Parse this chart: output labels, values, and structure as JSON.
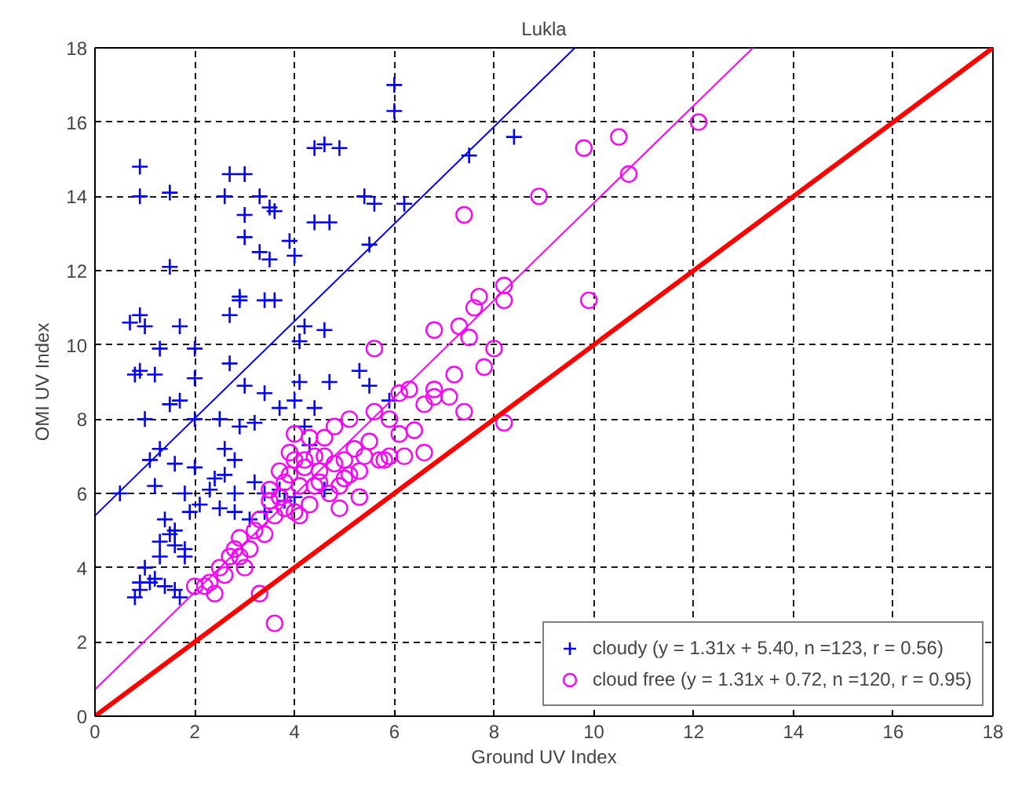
{
  "chart_data": {
    "type": "scatter",
    "title": "Lukla",
    "xlabel": "Ground UV Index",
    "ylabel": "OMI UV Index",
    "xlim": [
      0,
      18
    ],
    "ylim": [
      0,
      18
    ],
    "xticks": [
      0,
      2,
      4,
      6,
      8,
      10,
      12,
      14,
      16,
      18
    ],
    "yticks": [
      0,
      2,
      4,
      6,
      8,
      10,
      12,
      14,
      16,
      18
    ],
    "grid": true,
    "legend": "bottom right",
    "series": [
      {
        "name": "cloudy (y = 1.31x + 5.40, n =123, r = 0.56)",
        "color": "#0000ff",
        "marker": "cross",
        "x": [
          6.0,
          6.0,
          0.9,
          0.9,
          1.5,
          2.7,
          3.0,
          3.3,
          2.6,
          3.0,
          4.6,
          4.4,
          4.9,
          5.4,
          5.6,
          6.2,
          7.5,
          8.4,
          3.5,
          3.6,
          4.7,
          4.4,
          5.5,
          3.0,
          3.3,
          3.5,
          3.9,
          4.0,
          1.5,
          0.9,
          0.7,
          1.0,
          1.3,
          1.7,
          2.0,
          2.7,
          2.9,
          3.4,
          3.6,
          4.2,
          4.1,
          4.6,
          2.9,
          0.9,
          1.0,
          1.5,
          1.7,
          2.0,
          2.5,
          2.9,
          3.2,
          3.0,
          3.4,
          3.7,
          4.0,
          4.1,
          4.4,
          4.7,
          5.3,
          5.5,
          5.9,
          1.1,
          1.3,
          1.6,
          2.0,
          2.4,
          2.6,
          2.8,
          2.6,
          3.2,
          3.4,
          3.8,
          0.5,
          1.2,
          1.8,
          2.3,
          1.9,
          2.1,
          2.5,
          2.8,
          3.1,
          4.6,
          1.4,
          1.5,
          1.6,
          1.3,
          1.6,
          1.8,
          0.8,
          0.9,
          1.0,
          1.1,
          1.2,
          1.4,
          1.6,
          1.7,
          0.9,
          1.3,
          1.8,
          3.7,
          4.0,
          4.2,
          3.4,
          2.8,
          4.3,
          0.8,
          1.2,
          2.0,
          2.7
        ],
        "values": [
          17.0,
          16.3,
          14.8,
          14.0,
          14.1,
          14.6,
          14.6,
          14.0,
          14.0,
          13.5,
          15.4,
          15.3,
          15.3,
          14.0,
          13.8,
          13.8,
          15.1,
          15.6,
          13.7,
          13.6,
          13.3,
          13.3,
          12.7,
          12.9,
          12.5,
          12.3,
          12.8,
          12.4,
          12.1,
          10.8,
          10.6,
          10.5,
          9.9,
          10.5,
          9.9,
          10.8,
          11.3,
          11.2,
          11.2,
          10.5,
          10.1,
          10.4,
          11.2,
          9.3,
          8.0,
          8.4,
          8.5,
          8.0,
          8.0,
          7.8,
          7.9,
          8.9,
          8.7,
          8.3,
          8.5,
          9.0,
          8.3,
          9.0,
          9.3,
          8.9,
          8.5,
          6.9,
          7.2,
          6.8,
          6.7,
          6.4,
          6.5,
          6.0,
          7.2,
          6.3,
          6.0,
          5.8,
          6.0,
          6.2,
          6.0,
          6.1,
          5.5,
          5.7,
          5.6,
          5.5,
          5.3,
          6.1,
          5.3,
          4.9,
          5.0,
          4.7,
          4.6,
          4.3,
          3.2,
          3.6,
          4.0,
          3.6,
          3.7,
          3.5,
          3.4,
          3.2,
          3.4,
          4.3,
          4.5,
          6.1,
          5.9,
          7.8,
          5.5,
          6.9,
          7.3,
          9.2,
          9.2,
          9.1,
          9.5
        ]
      },
      {
        "name": "cloud free (y = 1.31x + 0.72, n =120, r = 0.95)",
        "color": "#ff00ff",
        "marker": "circle",
        "x": [
          12.1,
          10.5,
          9.8,
          10.7,
          8.9,
          7.4,
          9.9,
          8.2,
          8.2,
          7.7,
          7.6,
          7.3,
          7.5,
          6.8,
          8.0,
          7.8,
          5.6,
          6.3,
          6.1,
          7.1,
          6.6,
          7.4,
          5.6,
          5.9,
          6.8,
          5.9,
          6.2,
          6.6,
          6.1,
          5.1,
          5.2,
          5.5,
          5.4,
          5.0,
          4.6,
          4.8,
          4.3,
          4.4,
          4.0,
          4.2,
          3.9,
          4.1,
          4.5,
          4.7,
          4.9,
          5.1,
          5.3,
          5.7,
          4.3,
          4.0,
          3.7,
          3.5,
          3.6,
          3.3,
          3.2,
          2.9,
          3.4,
          3.8,
          2.8,
          2.7,
          2.5,
          2.3,
          2.2,
          2.4,
          2.6,
          3.0,
          3.3,
          3.6,
          8.2,
          4.5,
          4.2,
          4.6,
          4.4,
          3.8,
          3.7,
          3.5,
          3.1,
          2.9,
          2.0,
          4.8,
          5.0,
          5.3,
          4.1,
          4.9,
          5.8,
          6.4,
          6.8,
          7.2,
          3.9,
          4.0
        ],
        "values": [
          16.0,
          15.6,
          15.3,
          14.6,
          14.0,
          13.5,
          11.2,
          11.6,
          11.2,
          11.3,
          11.0,
          10.5,
          10.2,
          10.4,
          9.9,
          9.4,
          9.9,
          8.8,
          8.7,
          8.6,
          8.4,
          8.2,
          8.2,
          8.0,
          8.6,
          7.0,
          7.0,
          7.1,
          7.6,
          8.0,
          7.2,
          7.4,
          7.0,
          6.9,
          7.5,
          7.8,
          7.5,
          7.0,
          6.9,
          6.7,
          6.5,
          6.2,
          6.3,
          6.0,
          6.2,
          6.5,
          5.9,
          6.9,
          5.7,
          5.5,
          5.9,
          6.1,
          5.4,
          5.3,
          5.0,
          4.8,
          4.9,
          5.6,
          4.5,
          4.3,
          4.0,
          3.6,
          3.5,
          3.3,
          3.8,
          4.0,
          3.3,
          2.5,
          7.9,
          6.6,
          6.9,
          7.0,
          6.2,
          6.3,
          6.6,
          5.8,
          4.5,
          4.3,
          3.5,
          6.8,
          6.4,
          6.6,
          5.4,
          5.6,
          6.9,
          7.7,
          8.8,
          9.2,
          7.1,
          7.6
        ]
      },
      {
        "type": "line",
        "color": "#0000ff",
        "x": [
          0,
          9.62
        ],
        "values": [
          5.4,
          18.0
        ]
      },
      {
        "type": "line",
        "color": "#ff00ff",
        "x": [
          0,
          13.19
        ],
        "values": [
          0.72,
          18.0
        ]
      },
      {
        "type": "line",
        "color": "#ff0000",
        "x": [
          0,
          18
        ],
        "values": [
          0,
          18
        ]
      }
    ]
  }
}
